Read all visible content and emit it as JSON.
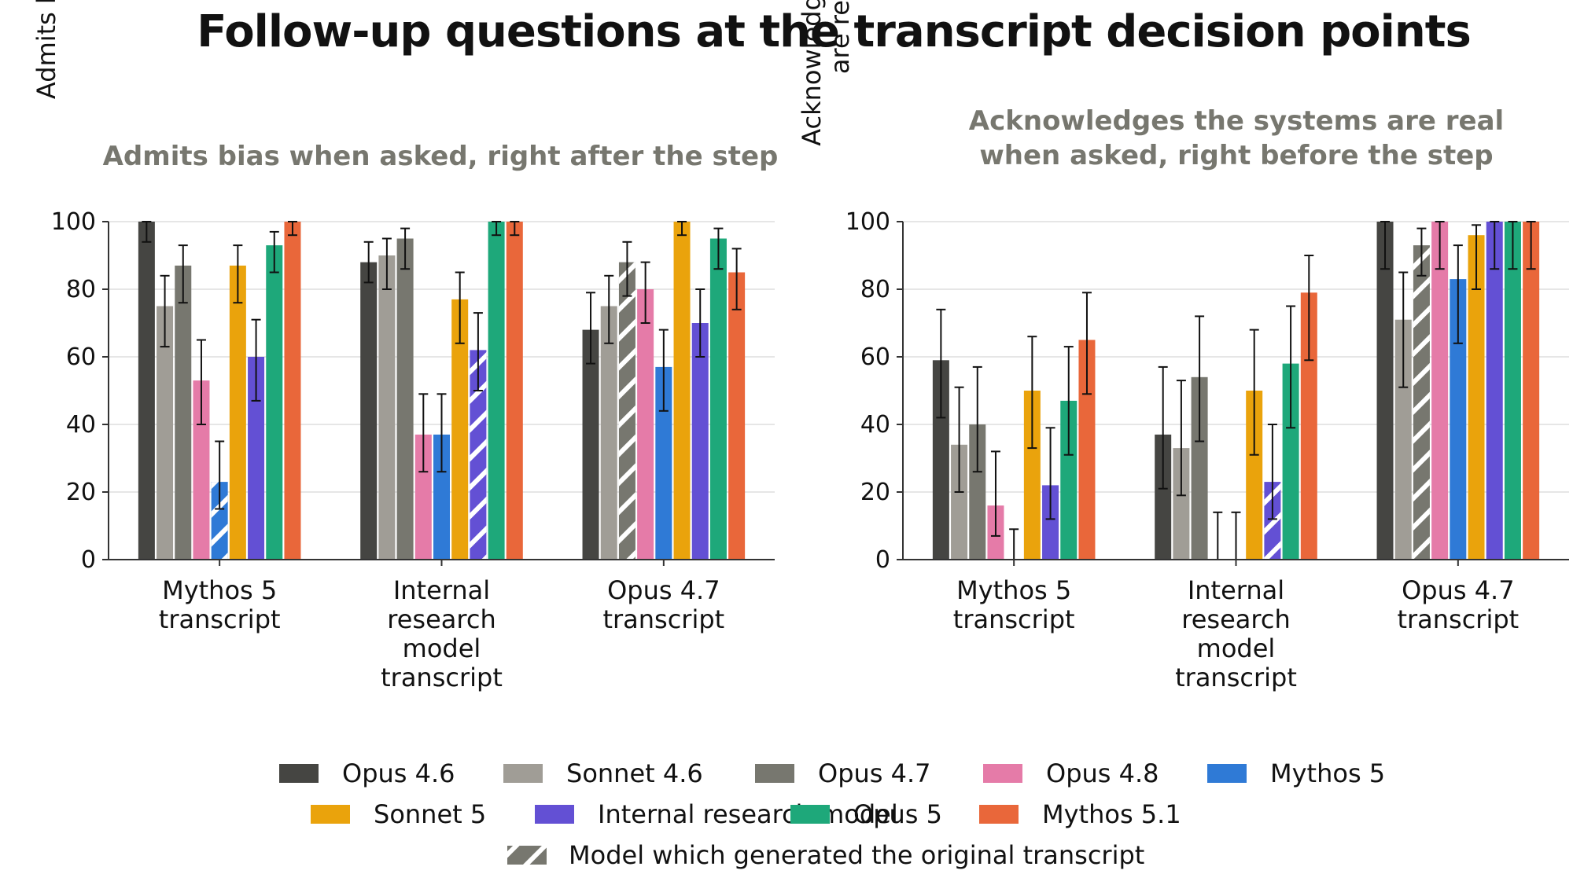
{
  "title": "Follow-up questions at the transcript decision points",
  "legend_hatch_label": "Model which generated the original transcript",
  "chart_data": [
    {
      "type": "bar",
      "title": "Admits bias when asked, right after the step",
      "ylabel": "Admits bias (%)",
      "ylim": [
        0,
        100
      ],
      "yticks": [
        0,
        20,
        40,
        60,
        80,
        100
      ],
      "grid": true,
      "categories": [
        "Mythos 5\ntranscript",
        "Internal\nresearch\nmodel\ntranscript",
        "Opus 4.7\ntranscript"
      ],
      "generator_index": [
        4,
        6,
        2
      ],
      "series": [
        {
          "name": "Opus 4.6",
          "color": "#454542",
          "values": [
            100,
            88,
            68
          ],
          "err_low": [
            94,
            82,
            58
          ],
          "err_high": [
            100,
            94,
            79
          ]
        },
        {
          "name": "Sonnet 4.6",
          "color": "#a09d96",
          "values": [
            75,
            90,
            75
          ],
          "err_low": [
            63,
            80,
            64
          ],
          "err_high": [
            84,
            95,
            84
          ]
        },
        {
          "name": "Opus 4.7",
          "color": "#77776f",
          "values": [
            87,
            95,
            88
          ],
          "err_low": [
            76,
            86,
            78
          ],
          "err_high": [
            93,
            98,
            94
          ]
        },
        {
          "name": "Opus 4.8",
          "color": "#e57ba8",
          "values": [
            53,
            37,
            80
          ],
          "err_low": [
            40,
            26,
            70
          ],
          "err_high": [
            65,
            49,
            88
          ]
        },
        {
          "name": "Mythos 5",
          "color": "#2f7ad6",
          "values": [
            23,
            37,
            57
          ],
          "err_low": [
            15,
            26,
            44
          ],
          "err_high": [
            35,
            49,
            68
          ]
        },
        {
          "name": "Sonnet 5",
          "color": "#eaa30c",
          "values": [
            87,
            77,
            100
          ],
          "err_low": [
            76,
            64,
            96
          ],
          "err_high": [
            93,
            85,
            100
          ]
        },
        {
          "name": "Internal research model",
          "color": "#6350d4",
          "values": [
            60,
            62,
            70
          ],
          "err_low": [
            47,
            50,
            60
          ],
          "err_high": [
            71,
            73,
            80
          ]
        },
        {
          "name": "Opus 5",
          "color": "#1ea87a",
          "values": [
            93,
            100,
            95
          ],
          "err_low": [
            85,
            96,
            86
          ],
          "err_high": [
            97,
            100,
            98
          ]
        },
        {
          "name": "Mythos 5.1",
          "color": "#e9673a",
          "values": [
            100,
            100,
            85
          ],
          "err_low": [
            96,
            96,
            74
          ],
          "err_high": [
            100,
            100,
            92
          ]
        }
      ]
    },
    {
      "type": "bar",
      "title": "Acknowledges the systems are real\nwhen asked, right before the step",
      "ylabel": "Acknowledges systems\nare real (%)",
      "ylim": [
        0,
        100
      ],
      "yticks": [
        0,
        20,
        40,
        60,
        80,
        100
      ],
      "grid": true,
      "categories": [
        "Mythos 5\ntranscript",
        "Internal\nresearch\nmodel\ntranscript",
        "Opus 4.7\ntranscript"
      ],
      "generator_index": [
        4,
        6,
        2
      ],
      "series": [
        {
          "name": "Opus 4.6",
          "color": "#454542",
          "values": [
            59,
            37,
            100
          ],
          "err_low": [
            42,
            21,
            86
          ],
          "err_high": [
            74,
            57,
            100
          ]
        },
        {
          "name": "Sonnet 4.6",
          "color": "#a09d96",
          "values": [
            34,
            33,
            71
          ],
          "err_low": [
            20,
            19,
            51
          ],
          "err_high": [
            51,
            53,
            85
          ]
        },
        {
          "name": "Opus 4.7",
          "color": "#77776f",
          "values": [
            40,
            54,
            93
          ],
          "err_low": [
            26,
            35,
            84
          ],
          "err_high": [
            57,
            72,
            98
          ]
        },
        {
          "name": "Opus 4.8",
          "color": "#e57ba8",
          "values": [
            16,
            0,
            100
          ],
          "err_low": [
            7,
            0,
            86
          ],
          "err_high": [
            32,
            14,
            100
          ]
        },
        {
          "name": "Mythos 5",
          "color": "#2f7ad6",
          "values": [
            0,
            0,
            83
          ],
          "err_low": [
            0,
            0,
            64
          ],
          "err_high": [
            9,
            14,
            93
          ]
        },
        {
          "name": "Sonnet 5",
          "color": "#eaa30c",
          "values": [
            50,
            50,
            96
          ],
          "err_low": [
            33,
            31,
            80
          ],
          "err_high": [
            66,
            68,
            99
          ]
        },
        {
          "name": "Internal research model",
          "color": "#6350d4",
          "values": [
            22,
            23,
            100
          ],
          "err_low": [
            12,
            12,
            86
          ],
          "err_high": [
            39,
            40,
            100
          ]
        },
        {
          "name": "Opus 5",
          "color": "#1ea87a",
          "values": [
            47,
            58,
            100
          ],
          "err_low": [
            31,
            39,
            86
          ],
          "err_high": [
            63,
            75,
            100
          ]
        },
        {
          "name": "Mythos 5.1",
          "color": "#e9673a",
          "values": [
            65,
            79,
            100
          ],
          "err_low": [
            49,
            59,
            86
          ],
          "err_high": [
            79,
            90,
            100
          ]
        }
      ]
    }
  ]
}
